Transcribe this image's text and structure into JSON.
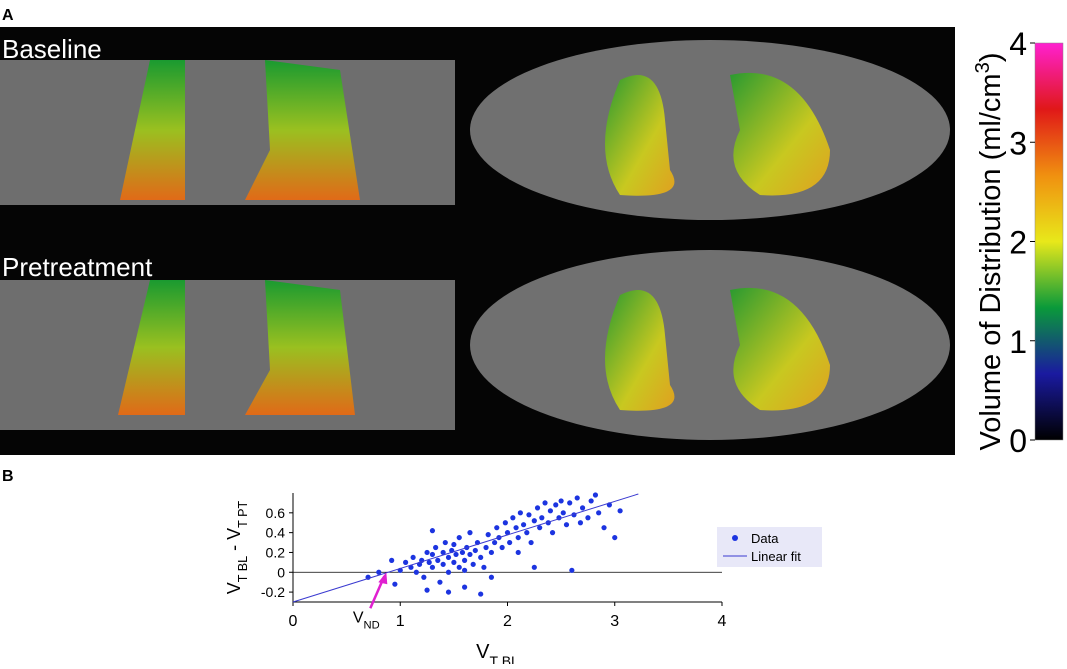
{
  "panel_labels": [
    "A",
    "B"
  ],
  "image_labels": [
    "Baseline",
    "Pretreatment"
  ],
  "chart_data": [
    {
      "type": "colorbar",
      "label": {
        "main": "Volume of Distribution (ml/cm",
        "sup": "3",
        "post": ")"
      },
      "ylim": [
        0,
        4
      ],
      "yticks": [
        0,
        1,
        2,
        3,
        4
      ],
      "colormap": [
        "#000000",
        "#1a1aa0",
        "#0a9a3a",
        "#e8e81a",
        "#f09010",
        "#e01818",
        "#ff20d0"
      ]
    },
    {
      "type": "scatter",
      "xlabel": {
        "main": "V",
        "sub": "T BL"
      },
      "ylabel": [
        {
          "main": "V",
          "sub": "T BL"
        },
        {
          "main": " - V",
          "sub": "T PT"
        }
      ],
      "annotation": {
        "main": "V",
        "sub": "ND",
        "x": 0.87,
        "y": 0
      },
      "xlim": [
        0,
        4
      ],
      "ylim": [
        -0.3,
        0.8
      ],
      "xticks": [
        0,
        1,
        2,
        3,
        4
      ],
      "yticks": [
        -0.2,
        0,
        0.2,
        0.4,
        0.6
      ],
      "legend": "right",
      "series": [
        {
          "name": "Data",
          "color": "#1c34e0",
          "style": "marker",
          "x": [
            1.0,
            1.05,
            1.1,
            1.12,
            1.15,
            1.18,
            1.2,
            1.22,
            1.25,
            1.27,
            1.3,
            1.3,
            1.33,
            1.35,
            1.37,
            1.4,
            1.4,
            1.42,
            1.45,
            1.45,
            1.48,
            1.5,
            1.5,
            1.52,
            1.55,
            1.55,
            1.58,
            1.6,
            1.6,
            1.62,
            1.65,
            1.65,
            1.68,
            1.7,
            1.72,
            1.75,
            1.78,
            1.8,
            1.82,
            1.85,
            1.88,
            1.9,
            1.92,
            1.95,
            1.98,
            2.0,
            2.02,
            2.05,
            2.08,
            2.1,
            2.12,
            2.15,
            2.18,
            2.2,
            2.22,
            2.25,
            2.28,
            2.3,
            2.32,
            2.35,
            2.38,
            2.4,
            2.42,
            2.45,
            2.48,
            2.5,
            2.52,
            2.55,
            2.58,
            2.6,
            2.62,
            2.65,
            2.68,
            2.7,
            2.75,
            2.78,
            2.82,
            2.85,
            2.9,
            2.95,
            3.0,
            3.05,
            0.7,
            0.8,
            0.92,
            0.95,
            1.6,
            1.3,
            2.1,
            2.25,
            1.85,
            1.45,
            1.75,
            1.25
          ],
          "y": [
            0.02,
            0.1,
            0.05,
            0.15,
            0.0,
            0.08,
            0.12,
            -0.05,
            0.2,
            0.1,
            0.05,
            0.18,
            0.25,
            0.12,
            -0.1,
            0.2,
            0.08,
            0.3,
            0.15,
            0.0,
            0.22,
            0.1,
            0.28,
            0.18,
            0.05,
            0.35,
            0.2,
            0.12,
            -0.15,
            0.25,
            0.18,
            0.4,
            0.08,
            0.22,
            0.3,
            0.15,
            0.05,
            0.25,
            0.38,
            0.2,
            0.3,
            0.45,
            0.35,
            0.25,
            0.5,
            0.4,
            0.3,
            0.55,
            0.45,
            0.35,
            0.6,
            0.48,
            0.4,
            0.58,
            0.3,
            0.52,
            0.65,
            0.45,
            0.55,
            0.7,
            0.5,
            0.62,
            0.4,
            0.68,
            0.55,
            0.72,
            0.6,
            0.48,
            0.7,
            0.02,
            0.58,
            0.75,
            0.5,
            0.65,
            0.55,
            0.72,
            0.78,
            0.6,
            0.45,
            0.68,
            0.35,
            0.62,
            -0.05,
            0.0,
            0.12,
            -0.12,
            0.02,
            0.42,
            0.2,
            0.05,
            -0.05,
            -0.2,
            -0.22,
            -0.18
          ]
        },
        {
          "name": "Linear fit",
          "color": "#3a3ad0",
          "style": "line",
          "x": [
            0,
            3.22
          ],
          "y": [
            -0.3,
            0.79
          ]
        }
      ]
    }
  ]
}
